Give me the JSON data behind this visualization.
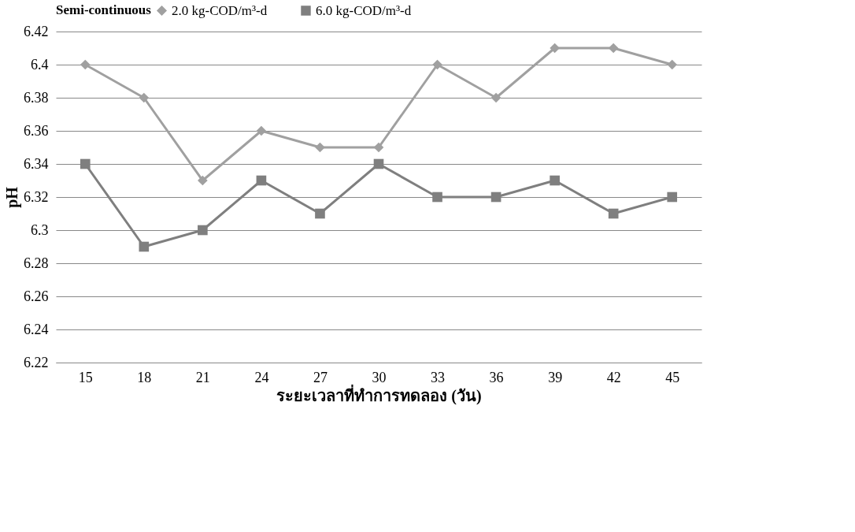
{
  "chart_data": {
    "type": "line",
    "xlabel": "ระยะเวลาที่ทำการทดลอง (วัน)",
    "ylabel": "pH",
    "legend_title": "Semi-continuous",
    "legend": "top",
    "grid": "y",
    "line_style": "solid",
    "categories": [
      "15",
      "18",
      "21",
      "24",
      "27",
      "30",
      "33",
      "36",
      "39",
      "42",
      "45"
    ],
    "ylim": [
      6.22,
      6.42
    ],
    "yticks": [
      6.22,
      6.24,
      6.26,
      6.28,
      6.3,
      6.32,
      6.34,
      6.36,
      6.38,
      6.4,
      6.42
    ],
    "series": [
      {
        "name": "2.0 kg-COD/m³-d",
        "color": "#a0a0a0",
        "marker": "diamond",
        "values": [
          6.4,
          6.38,
          6.33,
          6.36,
          6.35,
          6.35,
          6.4,
          6.38,
          6.41,
          6.41,
          6.4
        ]
      },
      {
        "name": "6.0 kg-COD/m³-d",
        "color": "#7f7f7f",
        "marker": "square",
        "values": [
          6.34,
          6.29,
          6.3,
          6.33,
          6.31,
          6.34,
          6.32,
          6.32,
          6.33,
          6.31,
          6.32
        ]
      }
    ]
  }
}
